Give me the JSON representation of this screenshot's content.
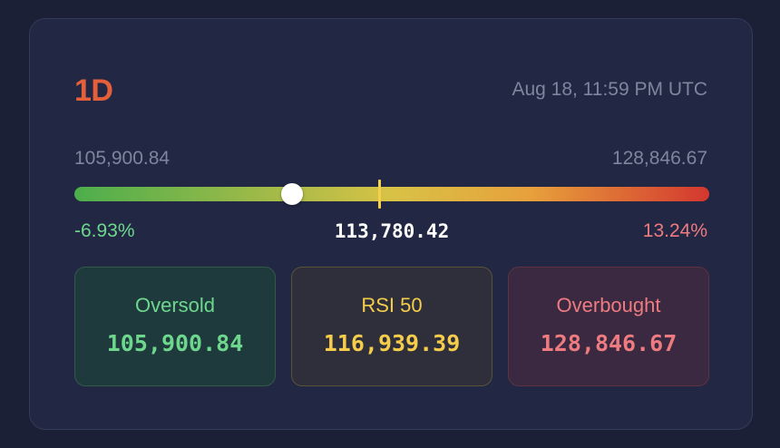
{
  "header": {
    "timeframe": "1D",
    "timestamp": "Aug 18, 11:59 PM UTC"
  },
  "range": {
    "low": "105,900.84",
    "high": "128,846.67",
    "low_pct": "-6.93%",
    "high_pct": "13.24%",
    "current": "113,780.42",
    "current_position": 0.343,
    "mid_position": 0.48
  },
  "levels": [
    {
      "label": "Oversold",
      "value": "105,900.84"
    },
    {
      "label": "RSI 50",
      "value": "116,939.39"
    },
    {
      "label": "Overbought",
      "value": "128,846.67"
    }
  ],
  "colors": {
    "timeframe": "#e5603a",
    "oversold": "#6dd88d",
    "rsi50": "#f5cd4b",
    "overbought": "#ee7b80",
    "gradient_start": "#4cae4c",
    "gradient_end": "#d4372f"
  }
}
